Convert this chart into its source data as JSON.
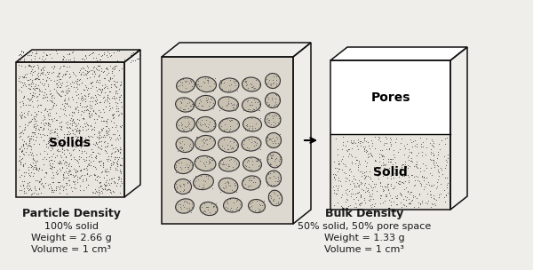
{
  "bg_color": "#f0eeea",
  "box1_label": "Solids",
  "box2_pores_label": "Pores",
  "box2_solid_label": "Solid",
  "title1": "Particle Density",
  "title2": "Bulk Density",
  "line1_1": "100% solid",
  "line1_2": "Weight = 2.66 g",
  "line1_3": "Volume = 1 cm³",
  "line2_1": "50% solid, 50% pore space",
  "line2_2": "Weight = 1.33 g",
  "line2_3": "Volume = 1 cm³",
  "text_color": "#1a1a1a",
  "dot_color": "#555555",
  "box_edge_color": "#111111",
  "pebble_colors": [
    "#c8c0b0",
    "#333333"
  ],
  "pebbles": [
    [
      2.08,
      0.72,
      0.21,
      0.16,
      15
    ],
    [
      2.35,
      0.69,
      0.2,
      0.15,
      -10
    ],
    [
      2.62,
      0.73,
      0.21,
      0.16,
      5
    ],
    [
      2.89,
      0.72,
      0.19,
      0.15,
      -8
    ],
    [
      3.1,
      0.81,
      0.15,
      0.18,
      20
    ],
    [
      2.06,
      0.94,
      0.19,
      0.17,
      -5
    ],
    [
      2.29,
      0.99,
      0.23,
      0.17,
      12
    ],
    [
      2.57,
      0.95,
      0.22,
      0.17,
      -15
    ],
    [
      2.83,
      0.98,
      0.21,
      0.16,
      8
    ],
    [
      3.08,
      1.03,
      0.17,
      0.18,
      -12
    ],
    [
      2.07,
      1.17,
      0.21,
      0.17,
      10
    ],
    [
      2.31,
      1.2,
      0.24,
      0.17,
      -8
    ],
    [
      2.58,
      1.19,
      0.23,
      0.16,
      5
    ],
    [
      2.84,
      1.19,
      0.21,
      0.16,
      -6
    ],
    [
      3.09,
      1.24,
      0.16,
      0.18,
      15
    ],
    [
      2.08,
      1.41,
      0.2,
      0.17,
      -10
    ],
    [
      2.31,
      1.43,
      0.23,
      0.17,
      8
    ],
    [
      2.57,
      1.41,
      0.23,
      0.17,
      -12
    ],
    [
      2.83,
      1.42,
      0.22,
      0.16,
      6
    ],
    [
      3.08,
      1.46,
      0.17,
      0.17,
      -10
    ],
    [
      2.09,
      1.64,
      0.21,
      0.17,
      12
    ],
    [
      2.32,
      1.64,
      0.22,
      0.17,
      -8
    ],
    [
      2.58,
      1.63,
      0.23,
      0.16,
      5
    ],
    [
      2.84,
      1.64,
      0.21,
      0.16,
      -5
    ],
    [
      3.07,
      1.69,
      0.18,
      0.17,
      10
    ],
    [
      2.08,
      1.86,
      0.21,
      0.16,
      -12
    ],
    [
      2.31,
      1.88,
      0.23,
      0.17,
      8
    ],
    [
      2.57,
      1.87,
      0.23,
      0.16,
      -10
    ],
    [
      2.83,
      1.86,
      0.21,
      0.16,
      6
    ],
    [
      3.07,
      1.91,
      0.17,
      0.17,
      -8
    ],
    [
      2.09,
      2.08,
      0.21,
      0.16,
      10
    ],
    [
      2.32,
      2.09,
      0.23,
      0.17,
      -8
    ],
    [
      2.58,
      2.08,
      0.22,
      0.16,
      5
    ],
    [
      2.83,
      2.09,
      0.21,
      0.16,
      -6
    ],
    [
      3.07,
      2.13,
      0.17,
      0.17,
      12
    ]
  ]
}
